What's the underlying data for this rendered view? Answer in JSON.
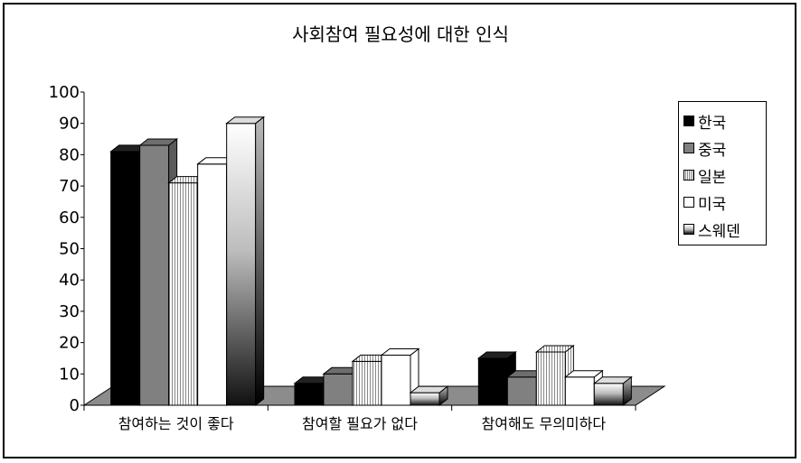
{
  "chart_data": {
    "type": "bar",
    "title": "사회참여 필요성에 대한 인식",
    "categories": [
      "참여하는 것이 좋다",
      "참여할 필요가 없다",
      "참여해도 무의미하다"
    ],
    "series": [
      {
        "name": "한국",
        "values": [
          81,
          7,
          15
        ]
      },
      {
        "name": "중국",
        "values": [
          83,
          10,
          9
        ]
      },
      {
        "name": "일본",
        "values": [
          71,
          14,
          17
        ]
      },
      {
        "name": "미국",
        "values": [
          77,
          16,
          9
        ]
      },
      {
        "name": "스웨덴",
        "values": [
          90,
          4,
          7
        ]
      }
    ],
    "ylim": [
      0,
      100
    ],
    "yticks": [
      0,
      10,
      20,
      30,
      40,
      50,
      60,
      70,
      80,
      90,
      100
    ],
    "legend": "right",
    "grid": false,
    "style": "3d-column"
  }
}
